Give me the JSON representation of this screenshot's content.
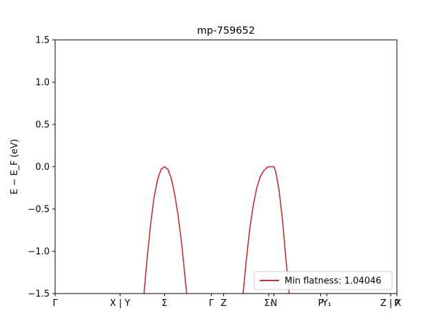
{
  "chart_data": {
    "type": "line",
    "title": "mp-759652",
    "ylabel": "E − E_F (eV)",
    "xlim": [
      0,
      10
    ],
    "ylim": [
      -1.5,
      1.5
    ],
    "yticks": [
      {
        "value": 1.5,
        "label": "1.5"
      },
      {
        "value": 1.0,
        "label": "1.0"
      },
      {
        "value": 0.5,
        "label": "0.5"
      },
      {
        "value": 0.0,
        "label": "0.0"
      },
      {
        "value": -0.5,
        "label": "−0.5"
      },
      {
        "value": -1.0,
        "label": "−1.0"
      },
      {
        "value": -1.5,
        "label": "−1.5"
      }
    ],
    "xticks": [
      {
        "value": 0.0,
        "label": "Γ"
      },
      {
        "value": 1.9,
        "label": "X | Y"
      },
      {
        "value": 3.2,
        "label": "Σ"
      },
      {
        "value": 4.57,
        "label": "Γ"
      },
      {
        "value": 4.93,
        "label": "Z"
      },
      {
        "value": 6.25,
        "label": "Σ₁"
      },
      {
        "value": 6.4,
        "label": "N"
      },
      {
        "value": 7.77,
        "label": "P"
      },
      {
        "value": 7.95,
        "label": "Y₁"
      },
      {
        "value": 9.82,
        "label": "Z | X"
      },
      {
        "value": 10.0,
        "label": "P"
      }
    ],
    "series": [
      {
        "name": "Min flatness: 1.04046",
        "color": "#d62728",
        "segments": [
          [
            [
              2.6,
              -1.5
            ],
            [
              2.7,
              -1.05
            ],
            [
              2.8,
              -0.66
            ],
            [
              2.9,
              -0.35
            ],
            [
              3.0,
              -0.15
            ],
            [
              3.1,
              -0.03
            ],
            [
              3.2,
              0.0
            ],
            [
              3.3,
              -0.03
            ],
            [
              3.4,
              -0.14
            ],
            [
              3.5,
              -0.33
            ],
            [
              3.6,
              -0.58
            ],
            [
              3.7,
              -0.9
            ],
            [
              3.8,
              -1.3
            ],
            [
              3.85,
              -1.5
            ]
          ],
          [
            [
              5.5,
              -1.5
            ],
            [
              5.6,
              -1.08
            ],
            [
              5.7,
              -0.72
            ],
            [
              5.8,
              -0.45
            ],
            [
              5.9,
              -0.25
            ],
            [
              6.0,
              -0.12
            ],
            [
              6.1,
              -0.05
            ],
            [
              6.2,
              -0.01
            ],
            [
              6.25,
              0.0
            ],
            [
              6.4,
              0.0
            ],
            [
              6.45,
              -0.05
            ],
            [
              6.55,
              -0.27
            ],
            [
              6.65,
              -0.62
            ],
            [
              6.75,
              -1.08
            ],
            [
              6.85,
              -1.5
            ]
          ]
        ]
      }
    ],
    "legend": {
      "position": "lower-right",
      "label": "Min flatness: 1.04046"
    },
    "grid": false
  }
}
